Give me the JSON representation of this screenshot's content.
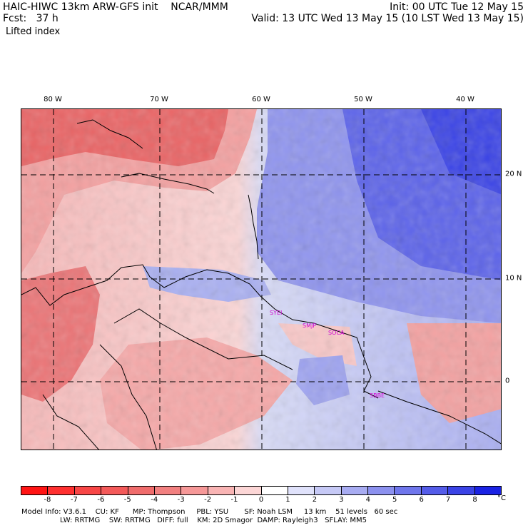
{
  "header": {
    "model": "HAIC-HIWC 13km ARW-GFS init    NCAR/MMM",
    "fcst": "Fcst:   37 h",
    "field": "Lifted index",
    "init": "Init: 00 UTC Tue 12 May 15",
    "valid": "Valid: 13 UTC Wed 13 May 15 (10 LST Wed 13 May 15)"
  },
  "map": {
    "lon_labels": [
      "80 W",
      "70 W",
      "60 W",
      "50 W",
      "40 W"
    ],
    "lat_labels": [
      "20 N",
      "10 N",
      "0"
    ],
    "sites": [
      "SYEI",
      "SMJP",
      "SOCA",
      "SBBE"
    ],
    "colors": {
      "warm_high": "#e8494e",
      "warm_mid": "#f08a8c",
      "warm_low": "#fbd2d2",
      "cool_low": "#d6daf6",
      "cool_mid": "#8b91ee",
      "cool_high": "#3c46e6",
      "coast": "#000000"
    }
  },
  "colorbar": {
    "ticks": [
      "-8",
      "-7",
      "-6",
      "-5",
      "-4",
      "-3",
      "-2",
      "-1",
      "0",
      "1",
      "2",
      "3",
      "4",
      "5",
      "6",
      "7",
      "8"
    ],
    "unit": "°C",
    "colors": [
      "#ff1414",
      "#ff3030",
      "#f84646",
      "#f45a5a",
      "#f06c6c",
      "#f28080",
      "#f69898",
      "#f9b4b4",
      "#fcd6d6",
      "#ffffff",
      "#e0e2fb",
      "#c6c9f6",
      "#a8acf2",
      "#8c91ef",
      "#6f76ec",
      "#545ce9",
      "#3a43e6",
      "#1a22e4"
    ]
  },
  "footer": {
    "line1": "Model Info: V3.6.1    CU: KF      MP: Thompson     PBL: YSU       SF: Noah LSM     13 km    51 levels   60 sec",
    "line2": "                 LW: RRTMG    SW: RRTMG   DIFF: full    KM: 2D Smagor  DAMP: Rayleigh3   SFLAY: MM5"
  }
}
